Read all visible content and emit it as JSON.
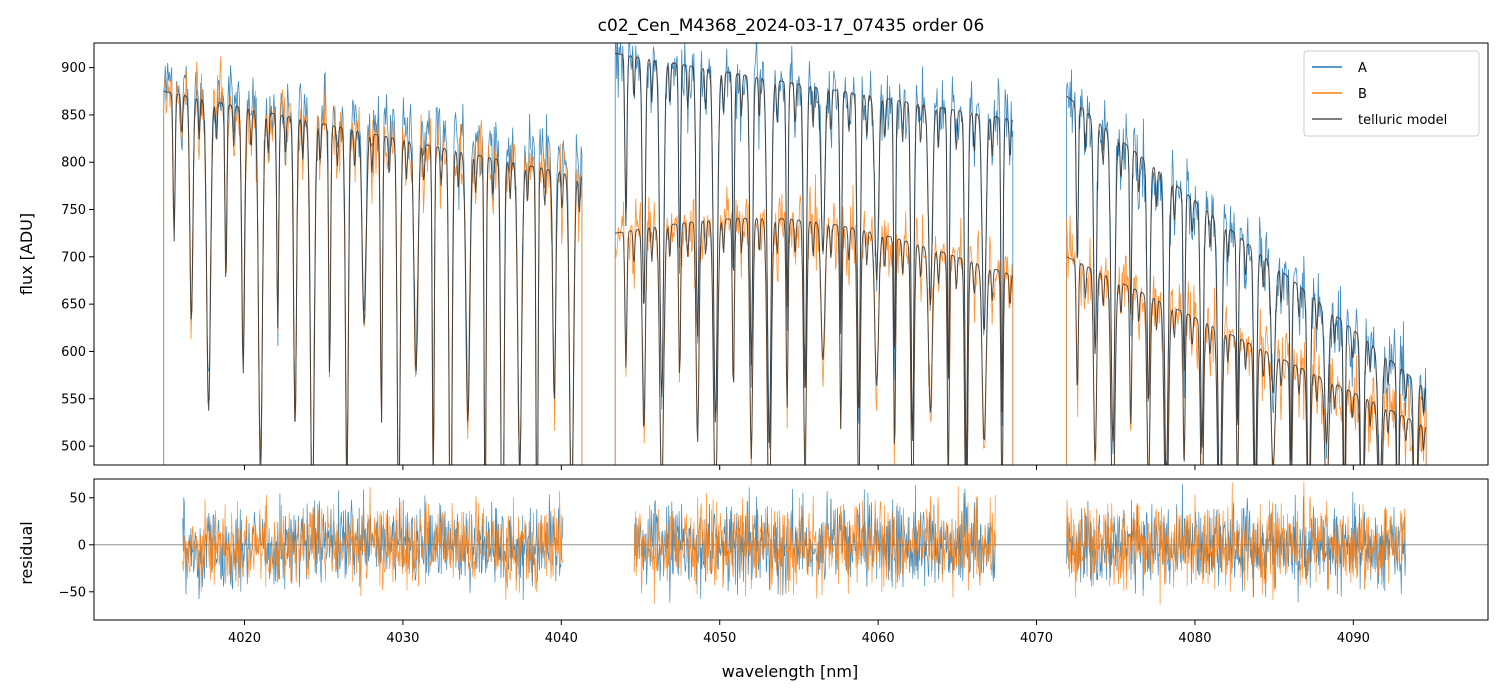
{
  "chart_data": {
    "type": "line",
    "title": "c02_Cen_M4368_2024-03-17_07435  order 06",
    "xlabel": "wavelength [nm]",
    "xlim": [
      4010.5,
      4098.5
    ],
    "x_ticks": [
      4020,
      4030,
      4040,
      4050,
      4060,
      4070,
      4080,
      4090
    ],
    "x_tick_labels": [
      "4020",
      "4030",
      "4040",
      "4050",
      "4060",
      "4070",
      "4080",
      "4090"
    ],
    "colors": {
      "A": "#1f77b4",
      "B": "#ff7f0e",
      "telluric": "#333333",
      "zero": "#808080"
    },
    "panels": [
      {
        "name": "flux",
        "ylabel": "flux [ADU]",
        "ylim": [
          480,
          926
        ],
        "y_ticks": [
          500,
          550,
          600,
          650,
          700,
          750,
          800,
          850,
          900
        ],
        "y_tick_labels": [
          "500",
          "550",
          "600",
          "650",
          "700",
          "750",
          "800",
          "850",
          "900"
        ],
        "segments": [
          {
            "x_range": [
              4014.9,
              4041.3
            ],
            "A_level": [
              880,
              810
            ],
            "B_level": [
              875,
              785
            ],
            "model": "B"
          },
          {
            "x_range": [
              4043.4,
              4068.5
            ],
            "A_level": [
              915,
              845
            ],
            "B_level": [
              725,
              690
            ],
            "model": "both"
          },
          {
            "x_range": [
              4071.9,
              4094.6
            ],
            "A_level": [
              870,
              560
            ],
            "B_level": [
              700,
              520
            ],
            "model": "both"
          }
        ],
        "telluric_line_depth_range": [
          480,
          700
        ],
        "legend": {
          "position": "top-right",
          "entries": [
            "A",
            "B",
            "telluric model"
          ]
        }
      },
      {
        "name": "residual",
        "ylabel": "residual",
        "ylim": [
          -80,
          70
        ],
        "y_ticks": [
          -50,
          0,
          50
        ],
        "y_tick_labels": [
          "−50",
          "0",
          "50"
        ],
        "zero_line": 0,
        "segments": [
          {
            "x_range": [
              4016.1,
              4040.1
            ],
            "noise_std": 22
          },
          {
            "x_range": [
              4044.6,
              4067.4
            ],
            "noise_std": 22
          },
          {
            "x_range": [
              4071.9,
              4093.3
            ],
            "noise_std": 22
          }
        ]
      }
    ]
  }
}
